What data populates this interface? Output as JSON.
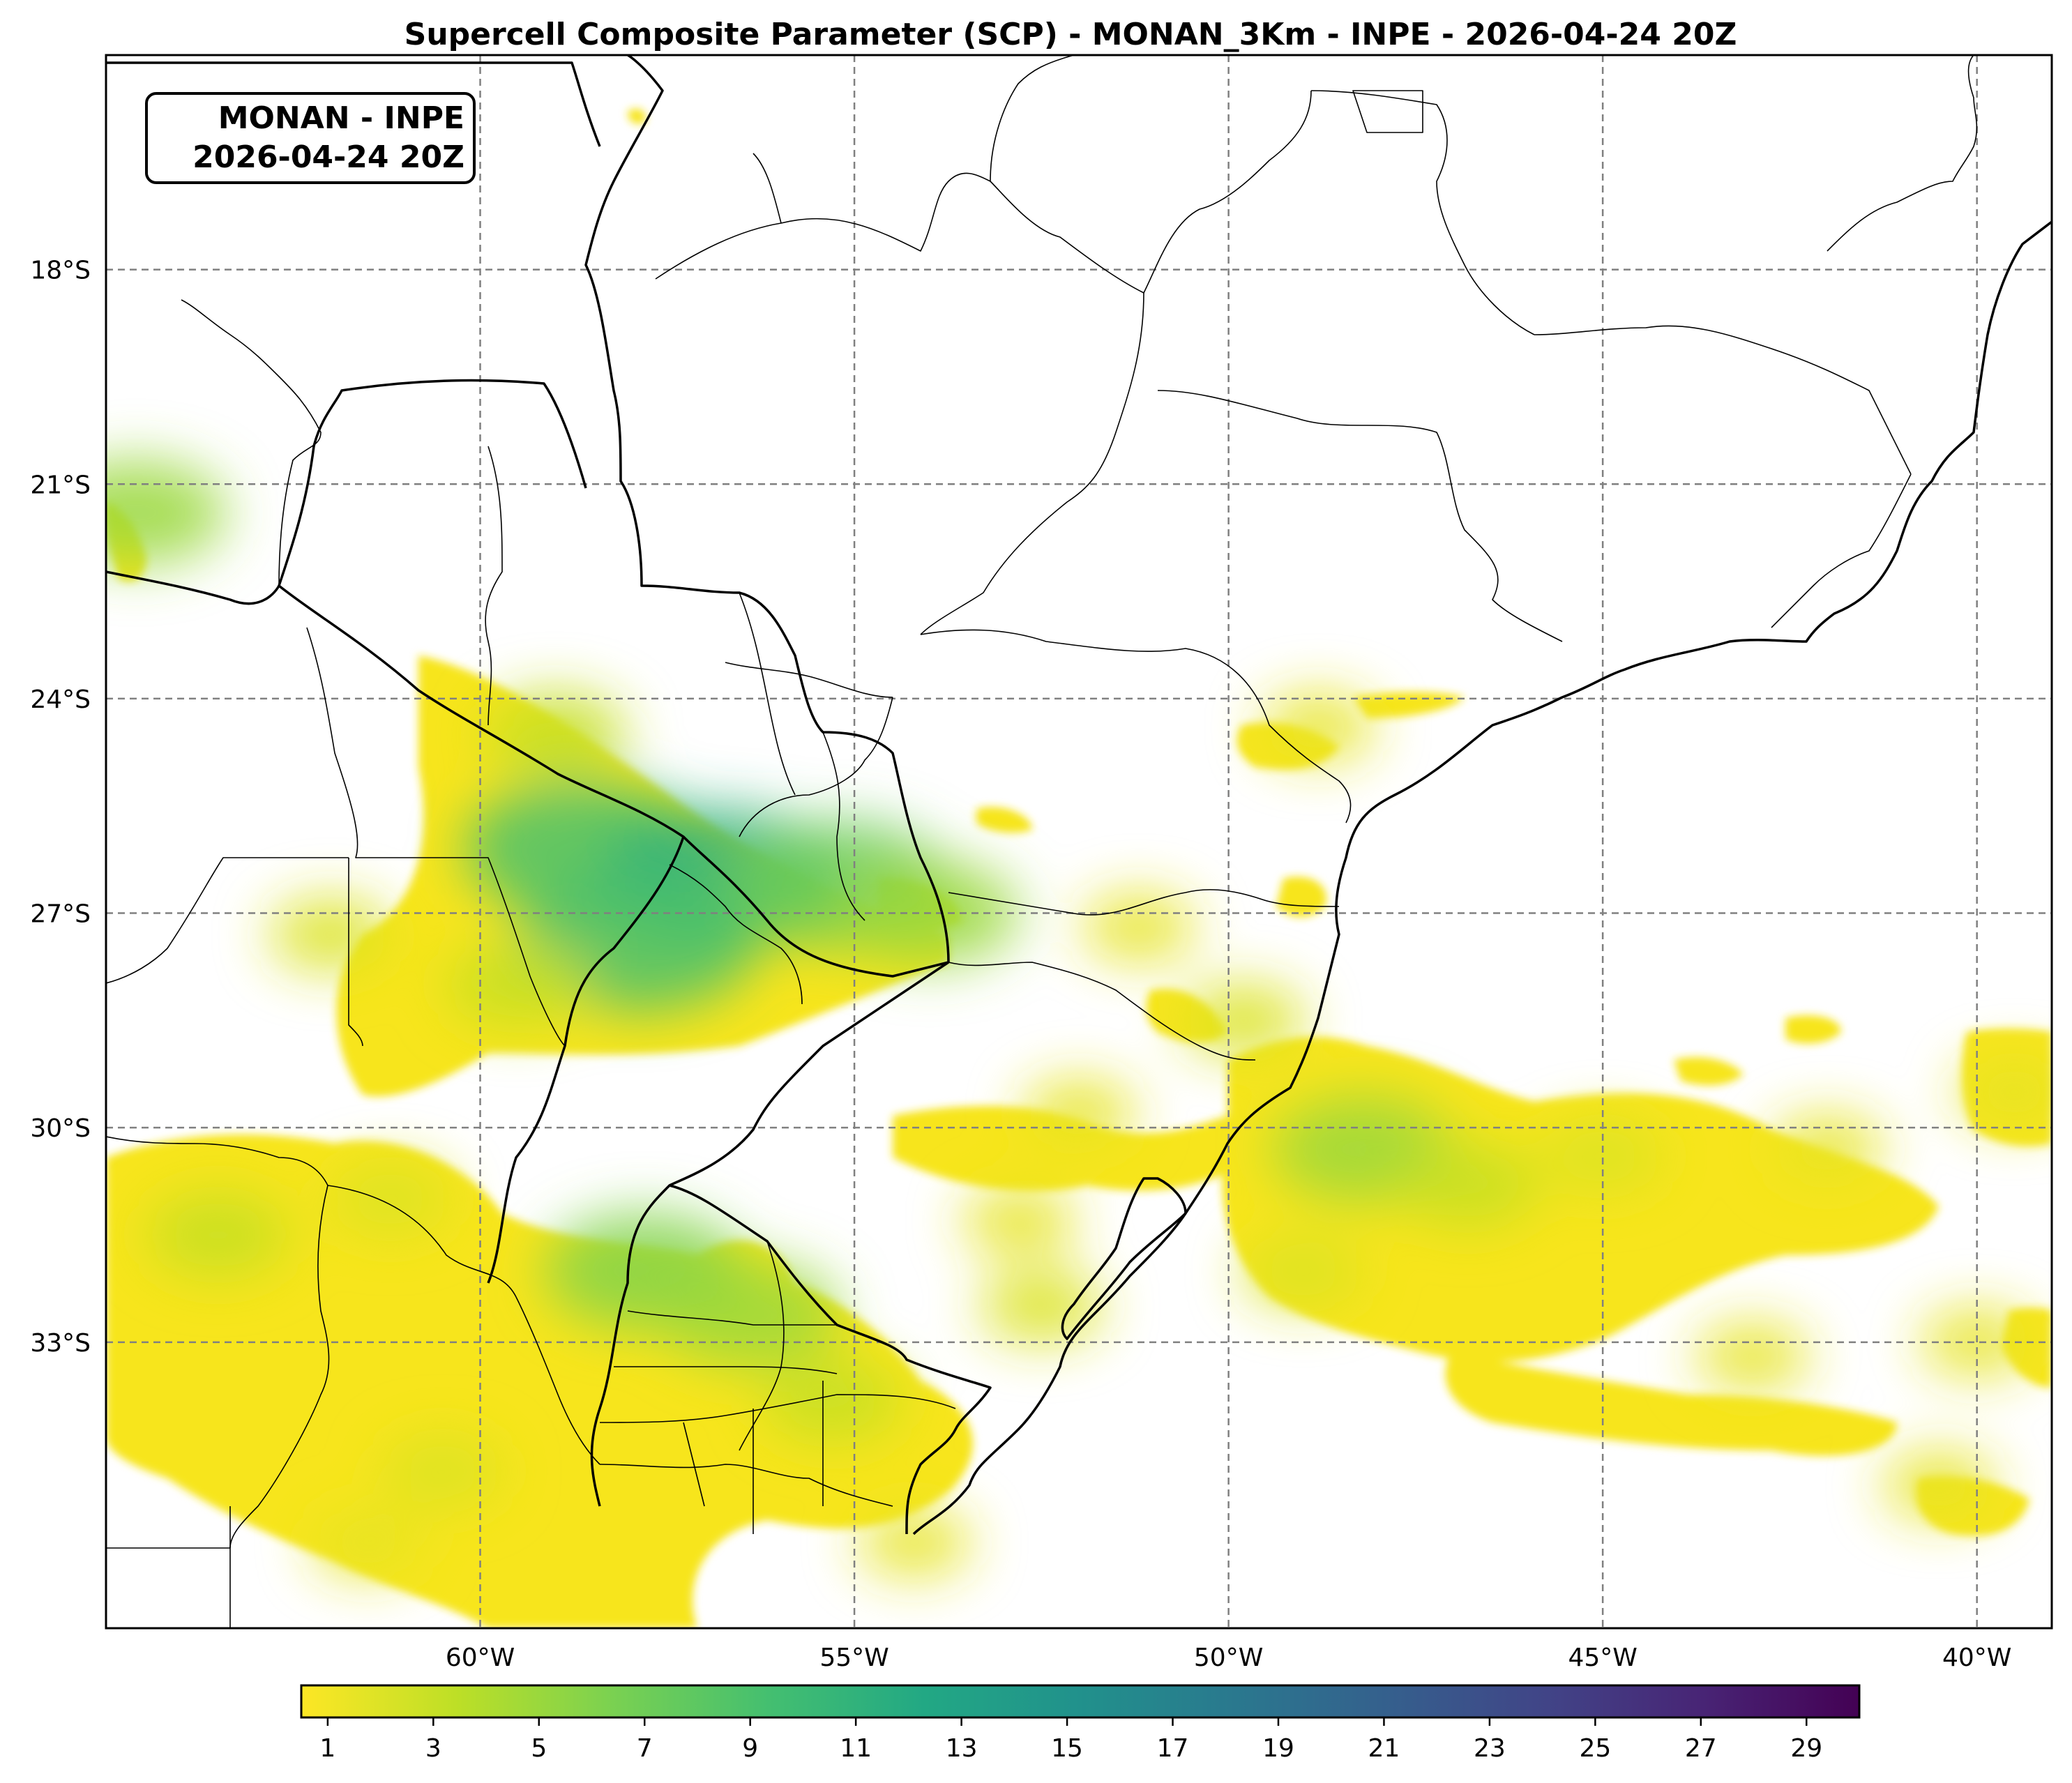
{
  "title": "Supercell Composite Parameter (SCP) - MONAN_3Km - INPE - 2026-04-24 20Z",
  "info_box": {
    "line1": "MONAN - INPE",
    "line2": "2026-04-24 20Z"
  },
  "map": {
    "lon_range": [
      -65.0,
      -39.0
    ],
    "lat_range": [
      -37.0,
      -15.0
    ],
    "lon_ticks": [
      {
        "value": -60,
        "label": "60°W"
      },
      {
        "value": -55,
        "label": "55°W"
      },
      {
        "value": -50,
        "label": "50°W"
      },
      {
        "value": -45,
        "label": "45°W"
      },
      {
        "value": -40,
        "label": "40°W"
      }
    ],
    "lat_ticks": [
      {
        "value": -18,
        "label": "18°S"
      },
      {
        "value": -21,
        "label": "21°S"
      },
      {
        "value": -24,
        "label": "24°S"
      },
      {
        "value": -27,
        "label": "27°S"
      },
      {
        "value": -30,
        "label": "30°S"
      },
      {
        "value": -33,
        "label": "33°S"
      }
    ],
    "gridlines": "dashed gray",
    "field": "SCP",
    "colormap": "viridis_r",
    "low_value_color": "#f7e51d",
    "high_value_color": "#440154",
    "scp_blobs": [
      {
        "lon": -58.6,
        "lat": -26.1,
        "value": 9
      },
      {
        "lon": -56.8,
        "lat": -26.5,
        "value": 11
      },
      {
        "lon": -55.2,
        "lat": -26.6,
        "value": 7
      },
      {
        "lon": -57.9,
        "lat": -27.4,
        "value": 9
      },
      {
        "lon": -54.0,
        "lat": -27.0,
        "value": 5
      },
      {
        "lon": -59.0,
        "lat": -24.5,
        "value": 3
      },
      {
        "lon": -62.0,
        "lat": -27.3,
        "value": 2
      },
      {
        "lon": -59.5,
        "lat": -28.0,
        "value": 3
      },
      {
        "lon": -63.5,
        "lat": -31.5,
        "value": 3
      },
      {
        "lon": -61.2,
        "lat": -31.0,
        "value": 2
      },
      {
        "lon": -57.8,
        "lat": -32.0,
        "value": 6
      },
      {
        "lon": -56.4,
        "lat": -32.6,
        "value": 5
      },
      {
        "lon": -55.3,
        "lat": -33.8,
        "value": 3
      },
      {
        "lon": -60.5,
        "lat": -34.8,
        "value": 2
      },
      {
        "lon": -61.5,
        "lat": -35.8,
        "value": 1.5
      },
      {
        "lon": -54.2,
        "lat": -35.8,
        "value": 1.5
      },
      {
        "lon": -52.0,
        "lat": -29.8,
        "value": 1.5
      },
      {
        "lon": -49.8,
        "lat": -28.5,
        "value": 2
      },
      {
        "lon": -48.2,
        "lat": -30.3,
        "value": 5
      },
      {
        "lon": -46.8,
        "lat": -30.8,
        "value": 3
      },
      {
        "lon": -45.0,
        "lat": -30.4,
        "value": 2
      },
      {
        "lon": -42.0,
        "lat": -30.3,
        "value": 1.5
      },
      {
        "lon": -43.0,
        "lat": -33.2,
        "value": 1.5
      },
      {
        "lon": -40.5,
        "lat": -35.0,
        "value": 1.5
      },
      {
        "lon": -39.5,
        "lat": -29.5,
        "value": 1.5
      },
      {
        "lon": -64.6,
        "lat": -21.4,
        "value": 5
      },
      {
        "lon": -48.8,
        "lat": -24.4,
        "value": 1.5
      },
      {
        "lon": -51.2,
        "lat": -27.2,
        "value": 1.5
      },
      {
        "lon": -52.5,
        "lat": -32.5,
        "value": 2
      },
      {
        "lon": -49.0,
        "lat": -32.0,
        "value": 2
      },
      {
        "lon": -52.8,
        "lat": -31.3,
        "value": 1.5
      },
      {
        "lon": -40.0,
        "lat": -33.0,
        "value": 1.5
      }
    ]
  },
  "colorbar": {
    "min": 0.5,
    "max": 30,
    "ticks": [
      "1",
      "3",
      "5",
      "7",
      "9",
      "11",
      "13",
      "15",
      "17",
      "19",
      "21",
      "23",
      "25",
      "27",
      "29"
    ],
    "tick_values": [
      1,
      3,
      5,
      7,
      9,
      11,
      13,
      15,
      17,
      19,
      21,
      23,
      25,
      27,
      29
    ]
  }
}
